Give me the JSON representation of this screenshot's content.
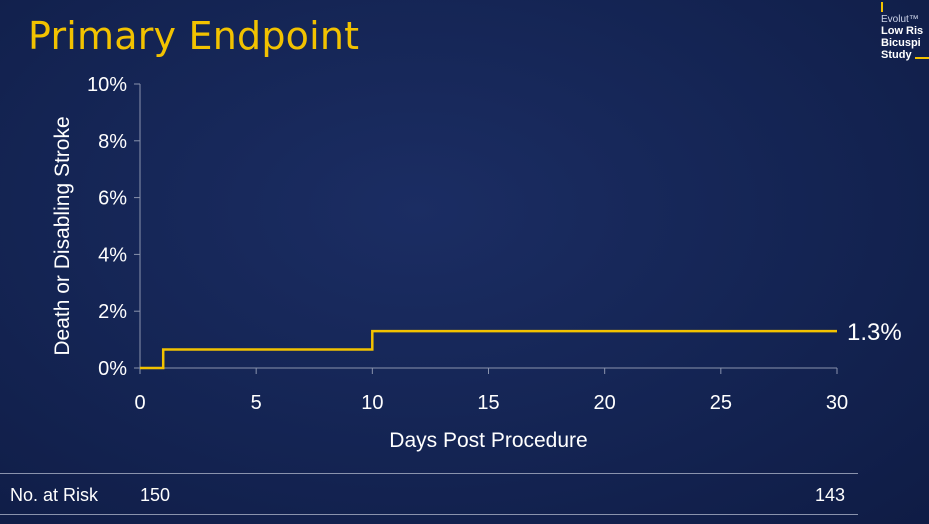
{
  "slide": {
    "title": "Primary Endpoint"
  },
  "logo": {
    "line1": "Evolut™",
    "line2": "Low Ris",
    "line3": "Bicuspi",
    "line4": "Study"
  },
  "chart_data": {
    "type": "line",
    "step": true,
    "xlabel": "Days Post Procedure",
    "ylabel": "Death or Disabling Stroke",
    "xlim": [
      0,
      30
    ],
    "ylim": [
      0,
      10
    ],
    "x_ticks": [
      0,
      5,
      10,
      15,
      20,
      25,
      30
    ],
    "y_ticks": [
      0,
      2,
      4,
      6,
      8,
      10
    ],
    "y_tick_labels": [
      "0%",
      "2%",
      "4%",
      "6%",
      "8%",
      "10%"
    ],
    "series": [
      {
        "color": "#f2c200",
        "x": [
          0,
          1,
          1,
          10,
          10,
          30
        ],
        "y": [
          0,
          0,
          0.65,
          0.65,
          1.3,
          1.3
        ],
        "end_label": "1.3%"
      }
    ],
    "grid": false
  },
  "risk_table": {
    "label": "No. at Risk",
    "values": [
      "150",
      "143"
    ]
  }
}
